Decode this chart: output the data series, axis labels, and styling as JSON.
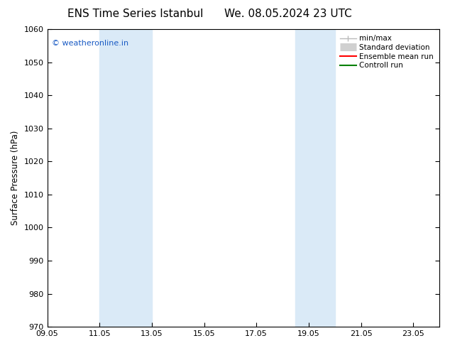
{
  "title_left": "ENS Time Series Istanbul",
  "title_right": "We. 08.05.2024 23 UTC",
  "ylabel": "Surface Pressure (hPa)",
  "xlabel": "",
  "ylim": [
    970,
    1060
  ],
  "yticks": [
    970,
    980,
    990,
    1000,
    1010,
    1020,
    1030,
    1040,
    1050,
    1060
  ],
  "xlim_start": 9.05,
  "xlim_end": 24.05,
  "xticks": [
    9.05,
    11.05,
    13.05,
    15.05,
    17.05,
    19.05,
    21.05,
    23.05
  ],
  "xtick_labels": [
    "09.05",
    "11.05",
    "13.05",
    "15.05",
    "17.05",
    "19.05",
    "21.05",
    "23.05"
  ],
  "shaded_regions": [
    {
      "xmin": 11.05,
      "xmax": 13.05
    },
    {
      "xmin": 18.55,
      "xmax": 20.05
    }
  ],
  "shaded_color": "#daeaf7",
  "watermark_text": "© weatheronline.in",
  "watermark_color": "#1a5bc4",
  "legend_items": [
    {
      "label": "min/max",
      "color": "#bbbbbb",
      "lw": 1.0,
      "type": "minmax"
    },
    {
      "label": "Standard deviation",
      "color": "#cccccc",
      "lw": 7,
      "type": "bar"
    },
    {
      "label": "Ensemble mean run",
      "color": "red",
      "lw": 1.5,
      "type": "line"
    },
    {
      "label": "Controll run",
      "color": "green",
      "lw": 1.5,
      "type": "line"
    }
  ],
  "bg_color": "#ffffff",
  "title_fontsize": 11,
  "axis_fontsize": 8.5,
  "tick_fontsize": 8,
  "legend_fontsize": 7.5
}
